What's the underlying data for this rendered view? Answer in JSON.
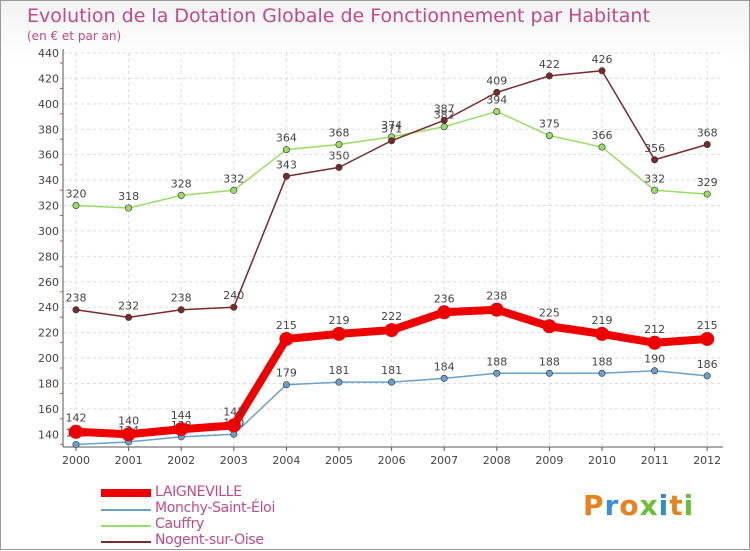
{
  "chart_data": {
    "type": "line",
    "title": "Evolution de la Dotation Globale de Fonctionnement par Habitant",
    "subtitle": "(en € et par an)",
    "xlabel": "",
    "ylabel": "",
    "categories": [
      "2000",
      "2001",
      "2002",
      "2003",
      "2004",
      "2005",
      "2006",
      "2007",
      "2008",
      "2009",
      "2010",
      "2011",
      "2012"
    ],
    "ylim": [
      130,
      440
    ],
    "yticks": [
      140,
      160,
      180,
      200,
      220,
      240,
      260,
      280,
      300,
      320,
      340,
      360,
      380,
      400,
      420,
      440
    ],
    "grid": true,
    "legend_position": "bottom-left",
    "series": [
      {
        "name": "LAIGNEVILLE",
        "color": "#ee0000",
        "values": [
          142,
          140,
          144,
          147,
          215,
          219,
          222,
          236,
          238,
          225,
          219,
          212,
          215
        ]
      },
      {
        "name": "Monchy-Saint-Éloi",
        "color": "#6aa0cc",
        "values": [
          132,
          134,
          138,
          140,
          179,
          181,
          181,
          184,
          188,
          188,
          188,
          190,
          186
        ]
      },
      {
        "name": "Cauffry",
        "color": "#99dd66",
        "values": [
          320,
          318,
          328,
          332,
          364,
          368,
          374,
          382,
          394,
          375,
          366,
          332,
          329
        ]
      },
      {
        "name": "Nogent-sur-Oise",
        "color": "#7a2a2a",
        "values": [
          238,
          232,
          238,
          240,
          343,
          350,
          371,
          387,
          409,
          422,
          426,
          356,
          368
        ]
      }
    ]
  },
  "logo": {
    "text": "Proxiti",
    "colors": [
      "#e8821e",
      "#3a8fd6",
      "#e8821e",
      "#6dbf3a",
      "#2f8ccf",
      "#e8821e",
      "#6dbf3a"
    ]
  }
}
